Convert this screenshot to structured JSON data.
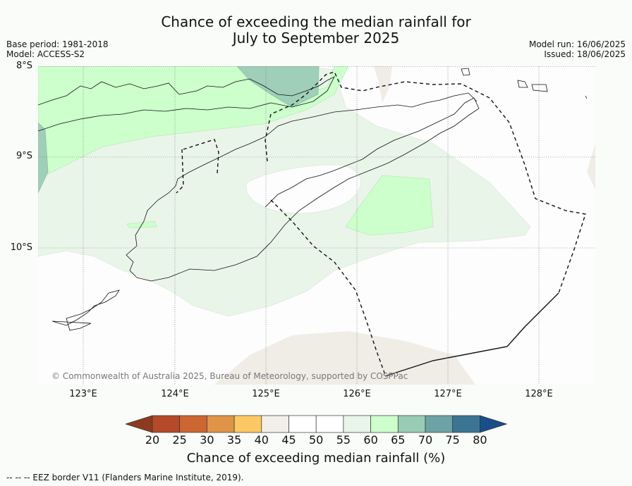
{
  "title": {
    "line1": "Chance of exceeding the median rainfall for",
    "line2": "July to September 2025"
  },
  "meta": {
    "base_period": "Base period: 1981-2018",
    "model": "Model: ACCESS-S2",
    "model_run": "Model run: 16/06/2025",
    "issued": "Issued: 18/06/2025"
  },
  "map": {
    "latitude_labels": [
      "8°S",
      "9°S",
      "10°S"
    ],
    "longitude_labels": [
      "123°E",
      "124°E",
      "125°E",
      "126°E",
      "127°E",
      "128°E"
    ],
    "lat_range": [
      -11.5,
      -8.0
    ],
    "lon_range": [
      122.5,
      128.6
    ],
    "gridlines": true,
    "copyright": "© Commonwealth of Australia 2025, Bureau of Meteorology, supported by COSPPac"
  },
  "colorbar": {
    "label": "Chance of exceeding median rainfall (%)",
    "ticks": [
      "20",
      "25",
      "30",
      "35",
      "40",
      "45",
      "50",
      "55",
      "60",
      "65",
      "70",
      "75",
      "80"
    ],
    "colors": [
      "#8e3a1f",
      "#b5492a",
      "#cc6633",
      "#e09448",
      "#fcc866",
      "#f2efe9",
      "#ffffff",
      "#ffffff",
      "#eaf5ea",
      "#ccffcc",
      "#99ccb5",
      "#6da3a6",
      "#3c7494",
      "#1a4e8a"
    ]
  },
  "footnote": "--  --  -- EEZ border V11 (Flanders Marine Institute, 2019)."
}
